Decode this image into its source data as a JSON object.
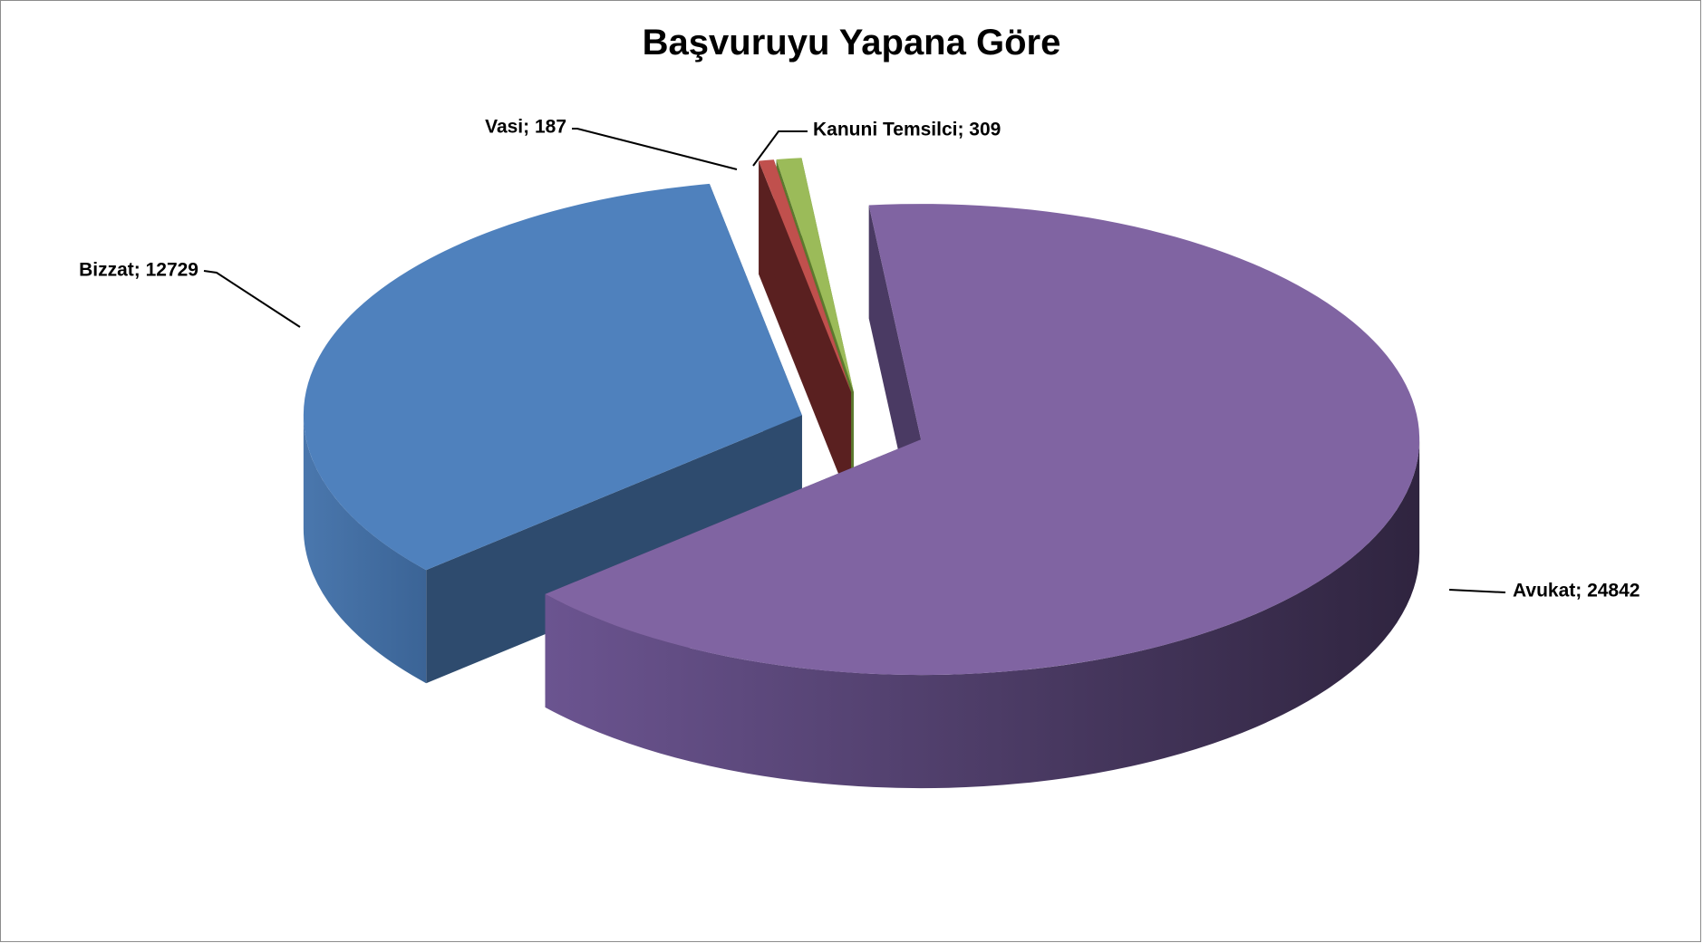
{
  "chart_data": {
    "type": "pie",
    "title": "Başvuruyu Yapana Göre",
    "categories": [
      "Avukat",
      "Bizzat",
      "Vasi",
      "Kanuni Temsilci"
    ],
    "values": [
      24842,
      12729,
      187,
      309
    ],
    "labels": [
      "Avukat; 24842",
      "Bizzat; 12729",
      "Vasi; 187",
      "Kanuni Temsilci; 309"
    ],
    "colors": [
      "#8064a2",
      "#4f81bd",
      "#c0504d",
      "#9bbb59"
    ],
    "side_colors": [
      "#4a3a63",
      "#2e4b6e",
      "#5a2020",
      "#5c7a2e"
    ],
    "style": "3d-exploded",
    "legend": "none",
    "grid": false
  }
}
